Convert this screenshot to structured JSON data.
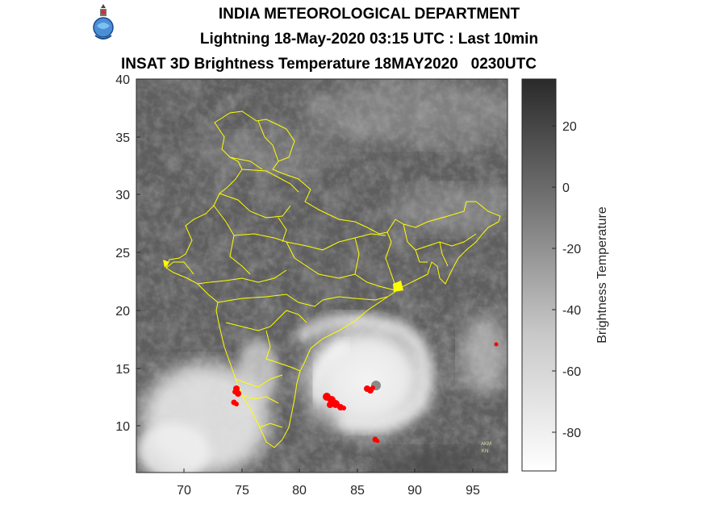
{
  "header": {
    "line1": "INDIA METEOROLOGICAL DEPARTMENT",
    "line2": "Lightning 18-May-2020 03:15 UTC : Last 10min",
    "line3": "INSAT 3D Brightness Temperature 18MAY2020   0230UTC"
  },
  "map": {
    "x_ticks": [
      "70",
      "75",
      "80",
      "85",
      "90",
      "95"
    ],
    "y_ticks": [
      "40",
      "35",
      "30",
      "25",
      "20",
      "15",
      "10"
    ],
    "x_range": [
      66,
      98
    ],
    "y_range": [
      6,
      40
    ],
    "lightning_color": "#ff0000",
    "boundary_color": "#ffff00",
    "watermark": [
      "AKM",
      "KN"
    ]
  },
  "colorbar": {
    "label": "Brightness Temperature",
    "ticks": [
      "20",
      "0",
      "-20",
      "-40",
      "-60",
      "-80"
    ],
    "range": [
      -93,
      35
    ]
  }
}
